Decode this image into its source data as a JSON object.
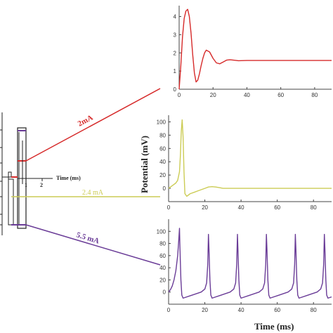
{
  "colors": {
    "red": "#d62a2a",
    "yellow": "#cccc55",
    "purple": "#6a3c97",
    "axis": "#444444",
    "schematic": "#222222"
  },
  "left_schematic": {
    "inset_xlabel": "Time (ms)",
    "inset_ticks": [
      "1",
      "2"
    ],
    "labels": [
      {
        "key": "red",
        "text": "2mA"
      },
      {
        "key": "yellow",
        "text": "2.4 mA"
      },
      {
        "key": "purple",
        "text": "5.5 mA"
      }
    ]
  },
  "shared_ylabel": "Potential (mV)",
  "shared_xlabel": "Time (ms)",
  "chart_data": [
    {
      "type": "line",
      "panel": "top",
      "color_key": "red",
      "xlim": [
        0,
        90
      ],
      "ylim": [
        0,
        4.6
      ],
      "xticks": [
        0,
        20,
        40,
        60,
        80
      ],
      "yticks": [
        0,
        1,
        2,
        3,
        4
      ],
      "x": [
        0,
        1,
        2,
        3,
        4,
        5,
        6,
        7,
        8,
        9,
        10,
        11,
        12,
        13,
        14,
        15,
        16,
        18,
        20,
        22,
        24,
        26,
        28,
        30,
        32,
        35,
        40,
        50,
        60,
        70,
        80,
        90
      ],
      "y": [
        0,
        1.3,
        2.9,
        3.9,
        4.3,
        4.4,
        4.0,
        3.1,
        1.9,
        0.9,
        0.4,
        0.5,
        0.85,
        1.3,
        1.7,
        2.0,
        2.15,
        2.05,
        1.7,
        1.45,
        1.4,
        1.5,
        1.6,
        1.62,
        1.6,
        1.57,
        1.58,
        1.58,
        1.58,
        1.58,
        1.58,
        1.58
      ]
    },
    {
      "type": "line",
      "panel": "middle",
      "color_key": "yellow",
      "xlim": [
        0,
        90
      ],
      "ylim": [
        -20,
        110
      ],
      "xticks": [
        0,
        20,
        40,
        60,
        80
      ],
      "yticks": [
        0,
        20,
        40,
        60,
        80,
        100
      ],
      "x": [
        0,
        1,
        2,
        3,
        4,
        5,
        6,
        6.5,
        7,
        7.5,
        8,
        8.5,
        9,
        10,
        11,
        12,
        14,
        16,
        18,
        20,
        22,
        24,
        26,
        28,
        30,
        35,
        40,
        50,
        60,
        70,
        80,
        90
      ],
      "y": [
        0,
        2,
        4,
        6,
        8,
        12,
        25,
        50,
        85,
        103,
        78,
        25,
        -8,
        -12,
        -10,
        -8,
        -6,
        -4,
        -2,
        0,
        2,
        2.5,
        2,
        1,
        0,
        0,
        0,
        0,
        0,
        0,
        0,
        0
      ]
    },
    {
      "type": "line",
      "panel": "bottom",
      "color_key": "purple",
      "xlim": [
        0,
        90
      ],
      "ylim": [
        -20,
        120
      ],
      "xticks": [
        0,
        20,
        40,
        60,
        80
      ],
      "yticks": [
        0,
        20,
        40,
        60,
        80,
        100
      ],
      "x": [
        0,
        1,
        2,
        3,
        4,
        5,
        5.6,
        6,
        6.3,
        6.8,
        7.3,
        8,
        9,
        12,
        15,
        18,
        20,
        21,
        21.6,
        22,
        22.3,
        22.8,
        23.3,
        24,
        25,
        28,
        31,
        34,
        36,
        37,
        37.6,
        38,
        38.3,
        38.8,
        39.3,
        40,
        41,
        44,
        47,
        50,
        52,
        53,
        53.6,
        54,
        54.3,
        54.8,
        55.3,
        56,
        57,
        60,
        63,
        66,
        68,
        69,
        69.6,
        70,
        70.3,
        70.8,
        71.3,
        72,
        73,
        76,
        79,
        82,
        84,
        85,
        85.6,
        86,
        86.3,
        86.8,
        87.3,
        88,
        89,
        90
      ],
      "y": [
        0,
        4,
        10,
        20,
        35,
        60,
        85,
        105,
        70,
        20,
        -5,
        -10,
        -9,
        -6,
        -3,
        0,
        5,
        15,
        45,
        95,
        70,
        20,
        -5,
        -10,
        -9,
        -6,
        -3,
        0,
        5,
        15,
        45,
        95,
        70,
        20,
        -5,
        -10,
        -9,
        -6,
        -3,
        0,
        5,
        15,
        45,
        95,
        70,
        20,
        -5,
        -10,
        -9,
        -6,
        -3,
        0,
        5,
        15,
        45,
        95,
        70,
        20,
        -5,
        -10,
        -9,
        -6,
        -3,
        0,
        5,
        15,
        45,
        95,
        70,
        20,
        -5,
        -10,
        -9,
        -8
      ]
    }
  ]
}
